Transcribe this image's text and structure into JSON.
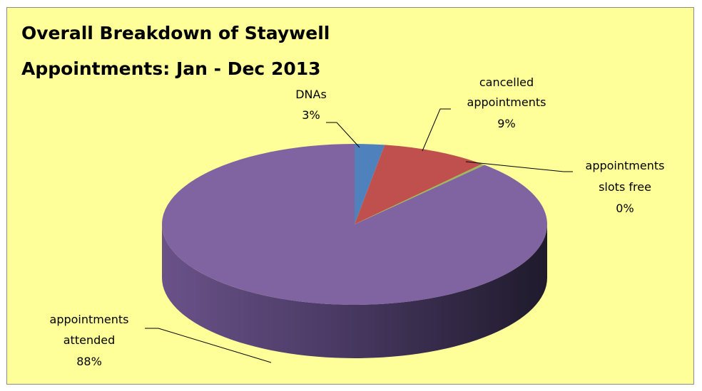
{
  "chart_data": {
    "type": "pie",
    "title": "Overall Breakdown of Staywell Appointments:  Jan - Dec 2013",
    "title_lines": [
      "Overall Breakdown of Staywell",
      "Appointments:  Jan - Dec 2013"
    ],
    "style": "3d-pie",
    "background_color": "#ffff99",
    "series": [
      {
        "slices": [
          {
            "label": "DNAs",
            "label_lines": [
              "DNAs"
            ],
            "percent_label": "3%",
            "value": 2.5,
            "color": "#4f81bd"
          },
          {
            "label": "cancelled appointments",
            "label_lines": [
              "cancelled",
              "appointments"
            ],
            "percent_label": "9%",
            "value": 9.0,
            "color": "#c0504d"
          },
          {
            "label": "appointments slots free",
            "label_lines": [
              "appointments",
              "slots free"
            ],
            "percent_label": "0%",
            "value": 0.3,
            "color": "#9bbb59"
          },
          {
            "label": "appointments attended",
            "label_lines": [
              "appointments",
              "attended"
            ],
            "percent_label": "88%",
            "value": 88.2,
            "color": "#8064a2"
          }
        ]
      }
    ],
    "legend": "none"
  }
}
